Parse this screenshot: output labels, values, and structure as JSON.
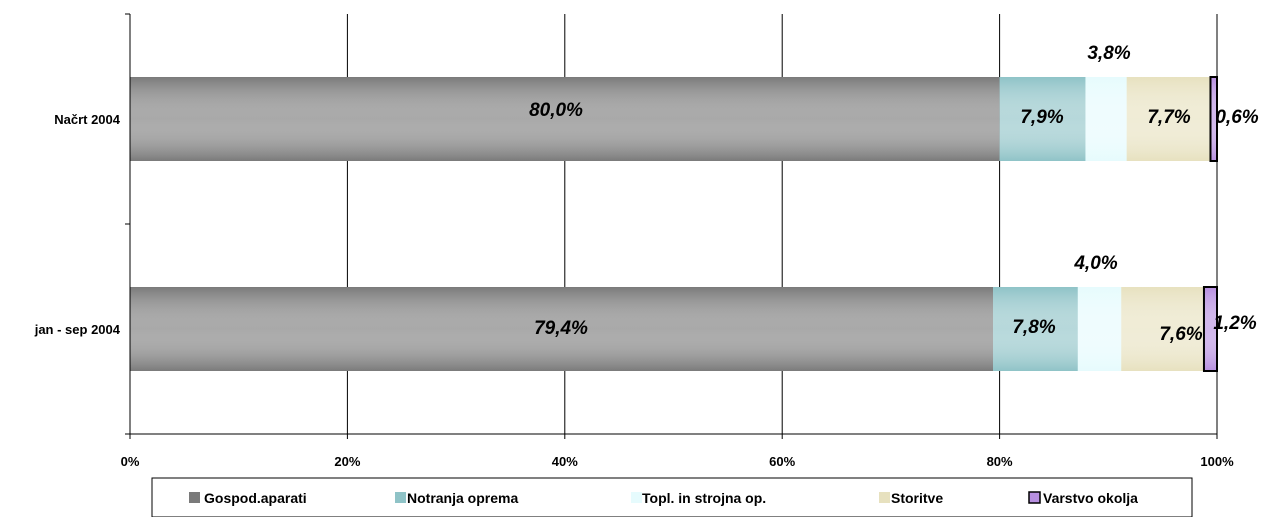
{
  "chart_data": {
    "type": "bar",
    "orientation": "horizontal",
    "stacked": "percent",
    "categories": [
      "Načrt 2004",
      "jan - sep 2004"
    ],
    "series": [
      {
        "name": "Gospod.aparati",
        "color": "#7a7a7a",
        "values": [
          80.0,
          79.4
        ],
        "labels": [
          "80,0%",
          "79,4%"
        ]
      },
      {
        "name": "Notranja oprema",
        "color": "#8fc3c7",
        "values": [
          7.9,
          7.8
        ],
        "labels": [
          "7,9%",
          "7,8%"
        ]
      },
      {
        "name": "Topl. in strojna op.",
        "color": "#e6fbfd",
        "values": [
          3.8,
          4.0
        ],
        "labels": [
          "3,8%",
          "4,0%"
        ]
      },
      {
        "name": "Storitve",
        "color": "#e7e1bf",
        "values": [
          7.7,
          7.6
        ],
        "labels": [
          "7,7%",
          "7,6%"
        ]
      },
      {
        "name": "Varstvo okolja",
        "color": "#b78fe0",
        "values": [
          0.6,
          1.2
        ],
        "labels": [
          "0,6%",
          "1,2%"
        ]
      }
    ],
    "xticks": [
      "0%",
      "20%",
      "40%",
      "60%",
      "80%",
      "100%"
    ],
    "xlim": [
      0,
      100
    ],
    "grid": true,
    "legend_position": "bottom"
  }
}
